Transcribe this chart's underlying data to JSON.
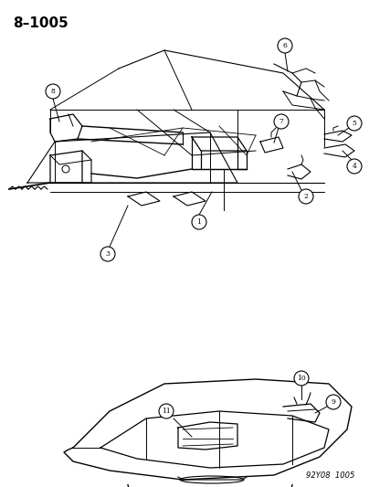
{
  "title": "8–1005",
  "footer": "92Y08  1005",
  "bg_color": "#ffffff",
  "line_color": "#000000",
  "callout_numbers": [
    1,
    2,
    3,
    4,
    5,
    6,
    7,
    8,
    9,
    10,
    11
  ],
  "title_fontsize": 11,
  "footer_fontsize": 6
}
